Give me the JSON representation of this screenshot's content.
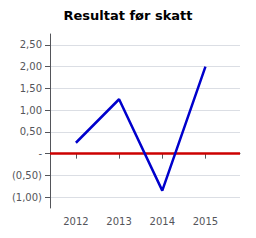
{
  "chart_data": {
    "type": "line",
    "title": "Resultat før skatt",
    "x": [
      2012,
      2013,
      2014,
      2015
    ],
    "values": [
      0.25,
      1.25,
      -0.85,
      2.0
    ],
    "color": "#0000CC",
    "xlim": [
      2011.4,
      2015.8
    ],
    "xticks": [
      2012,
      2013,
      2014,
      2015
    ],
    "ylim": [
      -1.25,
      2.75
    ],
    "yticks": [
      {
        "value": -1.0,
        "label": "(1,00)"
      },
      {
        "value": -0.5,
        "label": "(0,50)"
      },
      {
        "value": 0.0,
        "label": "-"
      },
      {
        "value": 0.5,
        "label": "0,50"
      },
      {
        "value": 1.0,
        "label": "1,00"
      },
      {
        "value": 1.5,
        "label": "1,50"
      },
      {
        "value": 2.0,
        "label": "2,00"
      },
      {
        "value": 2.5,
        "label": "2,50"
      }
    ],
    "hline": {
      "y": 0.0,
      "color": "#CC0000"
    },
    "grid": true
  }
}
